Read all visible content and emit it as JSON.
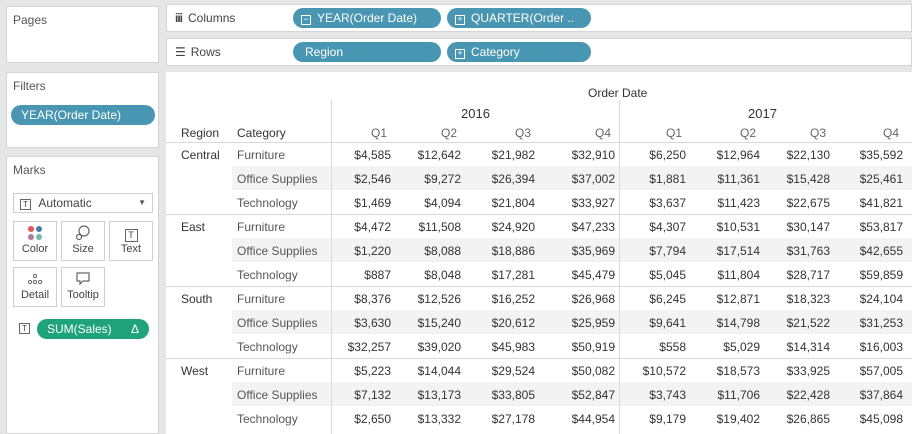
{
  "pages": {
    "title": "Pages"
  },
  "filters": {
    "title": "Filters",
    "pills": [
      "YEAR(Order Date)"
    ]
  },
  "marks": {
    "title": "Marks",
    "type_selected": "Automatic",
    "buttons": [
      "Color",
      "Size",
      "Text",
      "Detail",
      "Tooltip"
    ],
    "measure_pill": "SUM(Sales)",
    "measure_pill_delta": "Δ"
  },
  "columns_shelf": {
    "label": "Columns",
    "pills": [
      "YEAR(Order Date)",
      "QUARTER(Order .."
    ]
  },
  "rows_shelf": {
    "label": "Rows",
    "pills": [
      "Region",
      "Category"
    ]
  },
  "table": {
    "top_header": "Order Date",
    "years": [
      "2016",
      "2017"
    ],
    "quarters": [
      "Q1",
      "Q2",
      "Q3",
      "Q4",
      "Q1",
      "Q2",
      "Q3",
      "Q4"
    ],
    "row_header_region": "Region",
    "row_header_category": "Category",
    "regions": [
      {
        "name": "Central",
        "rows": [
          {
            "category": "Furniture",
            "values": [
              "$4,585",
              "$12,642",
              "$21,982",
              "$32,910",
              "$6,250",
              "$12,964",
              "$22,130",
              "$35,592"
            ]
          },
          {
            "category": "Office Supplies",
            "values": [
              "$2,546",
              "$9,272",
              "$26,394",
              "$37,002",
              "$1,881",
              "$11,361",
              "$15,428",
              "$25,461"
            ]
          },
          {
            "category": "Technology",
            "values": [
              "$1,469",
              "$4,094",
              "$21,804",
              "$33,927",
              "$3,637",
              "$11,423",
              "$22,675",
              "$41,821"
            ]
          }
        ]
      },
      {
        "name": "East",
        "rows": [
          {
            "category": "Furniture",
            "values": [
              "$4,472",
              "$11,508",
              "$24,920",
              "$47,233",
              "$4,307",
              "$10,531",
              "$30,147",
              "$53,817"
            ]
          },
          {
            "category": "Office Supplies",
            "values": [
              "$1,220",
              "$8,088",
              "$18,886",
              "$35,969",
              "$7,794",
              "$17,514",
              "$31,763",
              "$42,655"
            ]
          },
          {
            "category": "Technology",
            "values": [
              "$887",
              "$8,048",
              "$17,281",
              "$45,479",
              "$5,045",
              "$11,804",
              "$28,717",
              "$59,859"
            ]
          }
        ]
      },
      {
        "name": "South",
        "rows": [
          {
            "category": "Furniture",
            "values": [
              "$8,376",
              "$12,526",
              "$16,252",
              "$26,968",
              "$6,245",
              "$12,871",
              "$18,323",
              "$24,104"
            ]
          },
          {
            "category": "Office Supplies",
            "values": [
              "$3,630",
              "$15,240",
              "$20,612",
              "$25,959",
              "$9,641",
              "$14,798",
              "$21,522",
              "$31,253"
            ]
          },
          {
            "category": "Technology",
            "values": [
              "$32,257",
              "$39,020",
              "$45,983",
              "$50,919",
              "$558",
              "$5,029",
              "$14,314",
              "$16,003"
            ]
          }
        ]
      },
      {
        "name": "West",
        "rows": [
          {
            "category": "Furniture",
            "values": [
              "$5,223",
              "$14,044",
              "$29,524",
              "$50,082",
              "$10,572",
              "$18,573",
              "$33,925",
              "$57,005"
            ]
          },
          {
            "category": "Office Supplies",
            "values": [
              "$7,132",
              "$13,173",
              "$33,805",
              "$52,847",
              "$3,743",
              "$11,706",
              "$22,428",
              "$37,864"
            ]
          },
          {
            "category": "Technology",
            "values": [
              "$2,650",
              "$13,332",
              "$27,178",
              "$44,954",
              "$9,179",
              "$19,402",
              "$26,865",
              "$45,098"
            ]
          }
        ]
      }
    ]
  },
  "colors": {
    "pill_blue": "#4996b2",
    "pill_green": "#1fa37a",
    "band": "#f3f3f3"
  }
}
